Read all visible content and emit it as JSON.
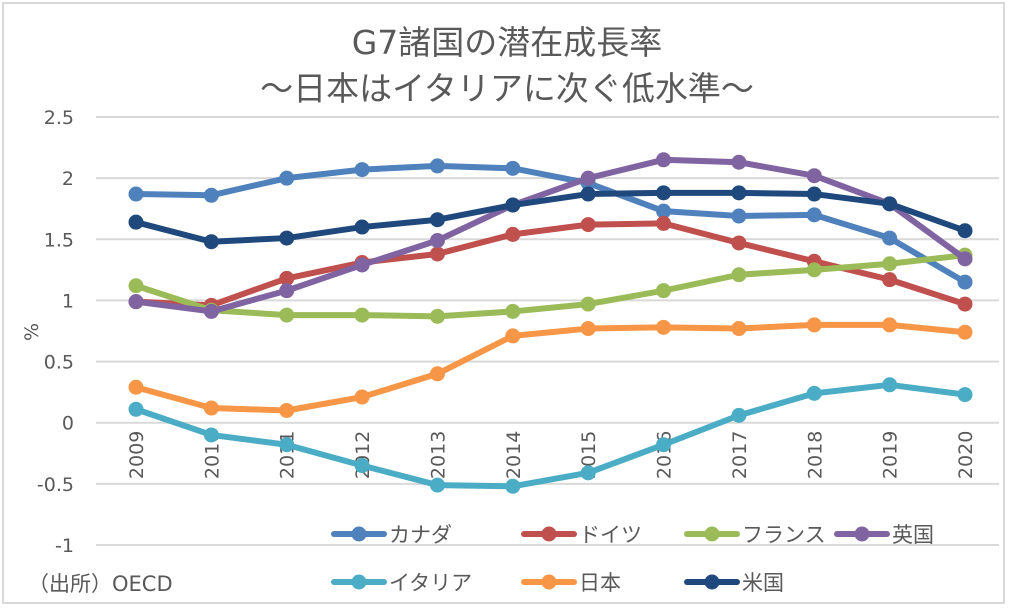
{
  "chart_data": {
    "type": "line",
    "title": "G7諸国の潜在成長率",
    "subtitle": "～日本はイタリアに次ぐ低水準～",
    "xlabel": "",
    "ylabel": "%",
    "ylim": [
      -1,
      2.5
    ],
    "yticks": [
      2.5,
      2,
      1.5,
      1,
      0.5,
      0,
      -0.5,
      -1
    ],
    "ytick_labels": [
      "2.5",
      "2",
      "1.5",
      "1",
      "0.5",
      "0",
      "-0.5",
      "-1"
    ],
    "grid": true,
    "legend_position": "bottom-right",
    "categories": [
      "2009",
      "2010",
      "2011",
      "2012",
      "2013",
      "2014",
      "2015",
      "2016",
      "2017",
      "2018",
      "2019",
      "2020"
    ],
    "series": [
      {
        "name": "カナダ",
        "color": "#4f81bd",
        "values": [
          1.87,
          1.86,
          2.0,
          2.07,
          2.1,
          2.08,
          1.96,
          1.73,
          1.69,
          1.7,
          1.51,
          1.15
        ]
      },
      {
        "name": "ドイツ",
        "color": "#c0504d",
        "values": [
          0.99,
          0.96,
          1.18,
          1.31,
          1.38,
          1.54,
          1.62,
          1.63,
          1.47,
          1.32,
          1.17,
          0.97
        ]
      },
      {
        "name": "フランス",
        "color": "#9bbb59",
        "values": [
          1.12,
          0.92,
          0.88,
          0.88,
          0.87,
          0.91,
          0.97,
          1.08,
          1.21,
          1.25,
          1.3,
          1.37
        ]
      },
      {
        "name": "英国",
        "color": "#8064a2",
        "values": [
          0.99,
          0.91,
          1.08,
          1.29,
          1.49,
          1.78,
          2.0,
          2.15,
          2.13,
          2.02,
          1.79,
          1.34
        ]
      },
      {
        "name": "イタリア",
        "color": "#4bacc6",
        "values": [
          0.11,
          -0.1,
          -0.18,
          -0.35,
          -0.51,
          -0.52,
          -0.41,
          -0.18,
          0.06,
          0.24,
          0.31,
          0.23
        ]
      },
      {
        "name": "日本",
        "color": "#f79646",
        "values": [
          0.29,
          0.12,
          0.1,
          0.21,
          0.4,
          0.71,
          0.77,
          0.78,
          0.77,
          0.8,
          0.8,
          0.74
        ]
      },
      {
        "name": "米国",
        "color": "#1f497d",
        "values": [
          1.64,
          1.48,
          1.51,
          1.6,
          1.66,
          1.78,
          1.87,
          1.88,
          1.88,
          1.87,
          1.79,
          1.57
        ]
      }
    ],
    "source_note": "（出所）OECD"
  }
}
